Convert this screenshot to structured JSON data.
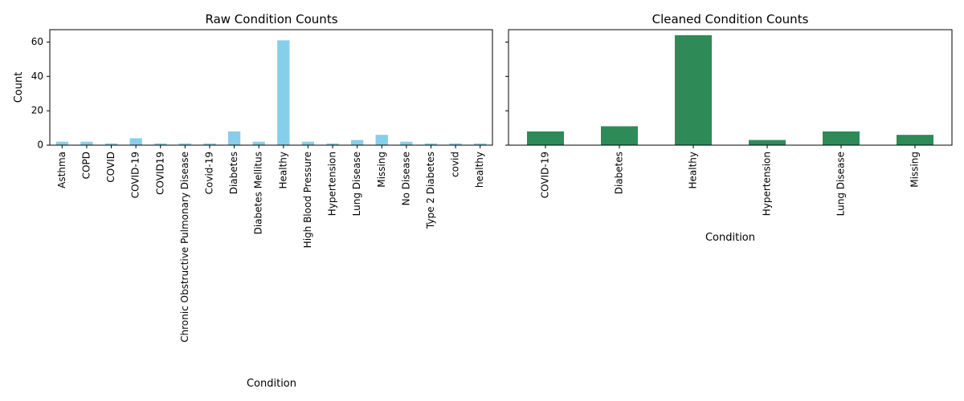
{
  "chart_data": [
    {
      "type": "bar",
      "title": "Raw Condition Counts",
      "xlabel": "Condition",
      "ylabel": "Count",
      "categories": [
        "Asthma",
        "COPD",
        "COVID",
        "COVID-19",
        "COVID19",
        "Chronic Obstructive Pulmonary Disease",
        "Covid-19",
        "Diabetes",
        "Diabetes Mellitus",
        "Healthy",
        "High Blood Pressure",
        "Hypertension",
        "Lung Disease",
        "Missing",
        "No Disease",
        "Type 2 Diabetes",
        "covid",
        "healthy"
      ],
      "values": [
        2,
        2,
        1,
        4,
        1,
        1,
        1,
        8,
        2,
        61,
        2,
        1,
        3,
        6,
        2,
        1,
        1,
        1
      ],
      "ylim": [
        0,
        67.2
      ],
      "yticks": [
        "0",
        "20",
        "40",
        "60"
      ],
      "color": "#87CEEB",
      "grid": false
    },
    {
      "type": "bar",
      "title": "Cleaned Condition Counts",
      "xlabel": "Condition",
      "ylabel": "",
      "categories": [
        "COVID-19",
        "Diabetes",
        "Healthy",
        "Hypertension",
        "Lung Disease",
        "Missing"
      ],
      "values": [
        8,
        11,
        64,
        3,
        8,
        6
      ],
      "ylim": [
        0,
        67.2
      ],
      "yticks": [
        "",
        "",
        "",
        ""
      ],
      "color": "#2E8B57",
      "grid": false,
      "sharey": true
    }
  ]
}
